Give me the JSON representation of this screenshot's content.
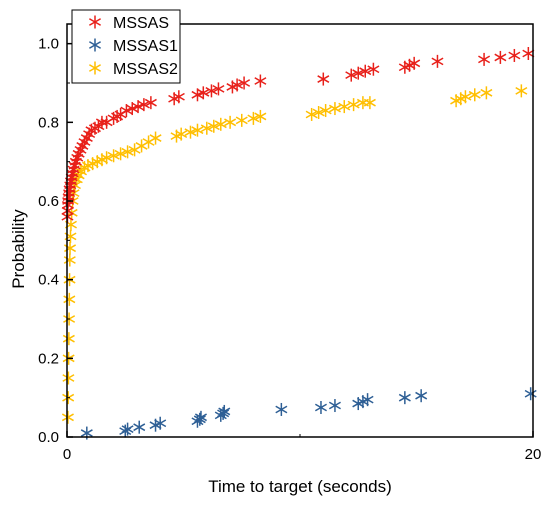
{
  "chart_data": {
    "type": "scatter",
    "xlabel": "Time to target (seconds)",
    "ylabel": "Probability",
    "xlim": [
      0,
      20
    ],
    "ylim": [
      0,
      1.05
    ],
    "x_ticks": [
      0,
      20
    ],
    "x_tick_labels": [
      "0",
      "20"
    ],
    "y_ticks": [
      0.0,
      0.2,
      0.4,
      0.6,
      0.8,
      1.0
    ],
    "y_tick_labels": [
      "0.0",
      "0.2",
      "0.4",
      "0.6",
      "0.8",
      "1.0"
    ],
    "grid": false,
    "legend_position": "top-left",
    "marker": "asterisk",
    "series": [
      {
        "name": "MSSAS",
        "color": "#e8201a",
        "points": [
          [
            0.02,
            0.56
          ],
          [
            0.03,
            0.575
          ],
          [
            0.04,
            0.59
          ],
          [
            0.05,
            0.6
          ],
          [
            0.07,
            0.61
          ],
          [
            0.09,
            0.62
          ],
          [
            0.11,
            0.63
          ],
          [
            0.14,
            0.64
          ],
          [
            0.17,
            0.65
          ],
          [
            0.2,
            0.66
          ],
          [
            0.24,
            0.67
          ],
          [
            0.28,
            0.68
          ],
          [
            0.33,
            0.69
          ],
          [
            0.38,
            0.7
          ],
          [
            0.44,
            0.71
          ],
          [
            0.5,
            0.72
          ],
          [
            0.58,
            0.73
          ],
          [
            0.66,
            0.74
          ],
          [
            0.75,
            0.75
          ],
          [
            0.85,
            0.76
          ],
          [
            0.95,
            0.77
          ],
          [
            1.05,
            0.78
          ],
          [
            1.2,
            0.785
          ],
          [
            1.35,
            0.79
          ],
          [
            1.5,
            0.8
          ],
          [
            1.7,
            0.8
          ],
          [
            2.0,
            0.81
          ],
          [
            2.15,
            0.815
          ],
          [
            2.3,
            0.82
          ],
          [
            2.55,
            0.83
          ],
          [
            2.8,
            0.835
          ],
          [
            3.05,
            0.84
          ],
          [
            3.3,
            0.845
          ],
          [
            3.6,
            0.85
          ],
          [
            4.6,
            0.86
          ],
          [
            4.8,
            0.865
          ],
          [
            5.6,
            0.87
          ],
          [
            5.85,
            0.875
          ],
          [
            6.2,
            0.88
          ],
          [
            6.5,
            0.885
          ],
          [
            7.1,
            0.89
          ],
          [
            7.3,
            0.895
          ],
          [
            7.6,
            0.9
          ],
          [
            8.3,
            0.905
          ],
          [
            11.0,
            0.91
          ],
          [
            12.2,
            0.92
          ],
          [
            12.5,
            0.925
          ],
          [
            12.8,
            0.93
          ],
          [
            13.15,
            0.935
          ],
          [
            14.5,
            0.94
          ],
          [
            14.7,
            0.945
          ],
          [
            14.9,
            0.95
          ],
          [
            15.9,
            0.955
          ],
          [
            17.9,
            0.96
          ],
          [
            18.6,
            0.965
          ],
          [
            19.2,
            0.97
          ],
          [
            19.8,
            0.975
          ]
        ]
      },
      {
        "name": "MSSAS1",
        "color": "#2e5f95",
        "points": [
          [
            0.85,
            0.01
          ],
          [
            2.5,
            0.015
          ],
          [
            2.6,
            0.02
          ],
          [
            3.1,
            0.025
          ],
          [
            3.8,
            0.03
          ],
          [
            4.0,
            0.035
          ],
          [
            5.6,
            0.04
          ],
          [
            5.7,
            0.045
          ],
          [
            5.75,
            0.05
          ],
          [
            6.6,
            0.055
          ],
          [
            6.7,
            0.06
          ],
          [
            6.75,
            0.065
          ],
          [
            9.2,
            0.07
          ],
          [
            10.9,
            0.075
          ],
          [
            11.5,
            0.08
          ],
          [
            12.5,
            0.085
          ],
          [
            12.7,
            0.09
          ],
          [
            12.9,
            0.095
          ],
          [
            14.5,
            0.1
          ],
          [
            15.2,
            0.105
          ],
          [
            19.9,
            0.11
          ]
        ]
      },
      {
        "name": "MSSAS2",
        "color": "#ffbf00",
        "points": [
          [
            0.04,
            0.05
          ],
          [
            0.05,
            0.1
          ],
          [
            0.06,
            0.15
          ],
          [
            0.07,
            0.2
          ],
          [
            0.08,
            0.25
          ],
          [
            0.09,
            0.3
          ],
          [
            0.1,
            0.35
          ],
          [
            0.11,
            0.4
          ],
          [
            0.12,
            0.45
          ],
          [
            0.13,
            0.48
          ],
          [
            0.15,
            0.51
          ],
          [
            0.17,
            0.54
          ],
          [
            0.2,
            0.57
          ],
          [
            0.24,
            0.6
          ],
          [
            0.28,
            0.62
          ],
          [
            0.34,
            0.64
          ],
          [
            0.42,
            0.655
          ],
          [
            0.5,
            0.665
          ],
          [
            0.6,
            0.675
          ],
          [
            0.75,
            0.685
          ],
          [
            0.9,
            0.69
          ],
          [
            1.1,
            0.695
          ],
          [
            1.3,
            0.7
          ],
          [
            1.5,
            0.705
          ],
          [
            1.7,
            0.71
          ],
          [
            2.0,
            0.715
          ],
          [
            2.3,
            0.72
          ],
          [
            2.6,
            0.725
          ],
          [
            2.9,
            0.73
          ],
          [
            3.2,
            0.74
          ],
          [
            3.5,
            0.75
          ],
          [
            3.8,
            0.76
          ],
          [
            4.7,
            0.765
          ],
          [
            4.9,
            0.77
          ],
          [
            5.3,
            0.775
          ],
          [
            5.6,
            0.78
          ],
          [
            6.0,
            0.785
          ],
          [
            6.3,
            0.79
          ],
          [
            6.6,
            0.795
          ],
          [
            7.0,
            0.8
          ],
          [
            7.5,
            0.805
          ],
          [
            8.0,
            0.81
          ],
          [
            8.3,
            0.815
          ],
          [
            10.5,
            0.82
          ],
          [
            10.8,
            0.825
          ],
          [
            11.1,
            0.83
          ],
          [
            11.5,
            0.835
          ],
          [
            11.9,
            0.84
          ],
          [
            12.3,
            0.845
          ],
          [
            12.7,
            0.85
          ],
          [
            13.0,
            0.85
          ],
          [
            16.7,
            0.855
          ],
          [
            16.9,
            0.86
          ],
          [
            17.1,
            0.865
          ],
          [
            17.5,
            0.87
          ],
          [
            18.0,
            0.875
          ],
          [
            19.5,
            0.88
          ]
        ]
      }
    ]
  }
}
